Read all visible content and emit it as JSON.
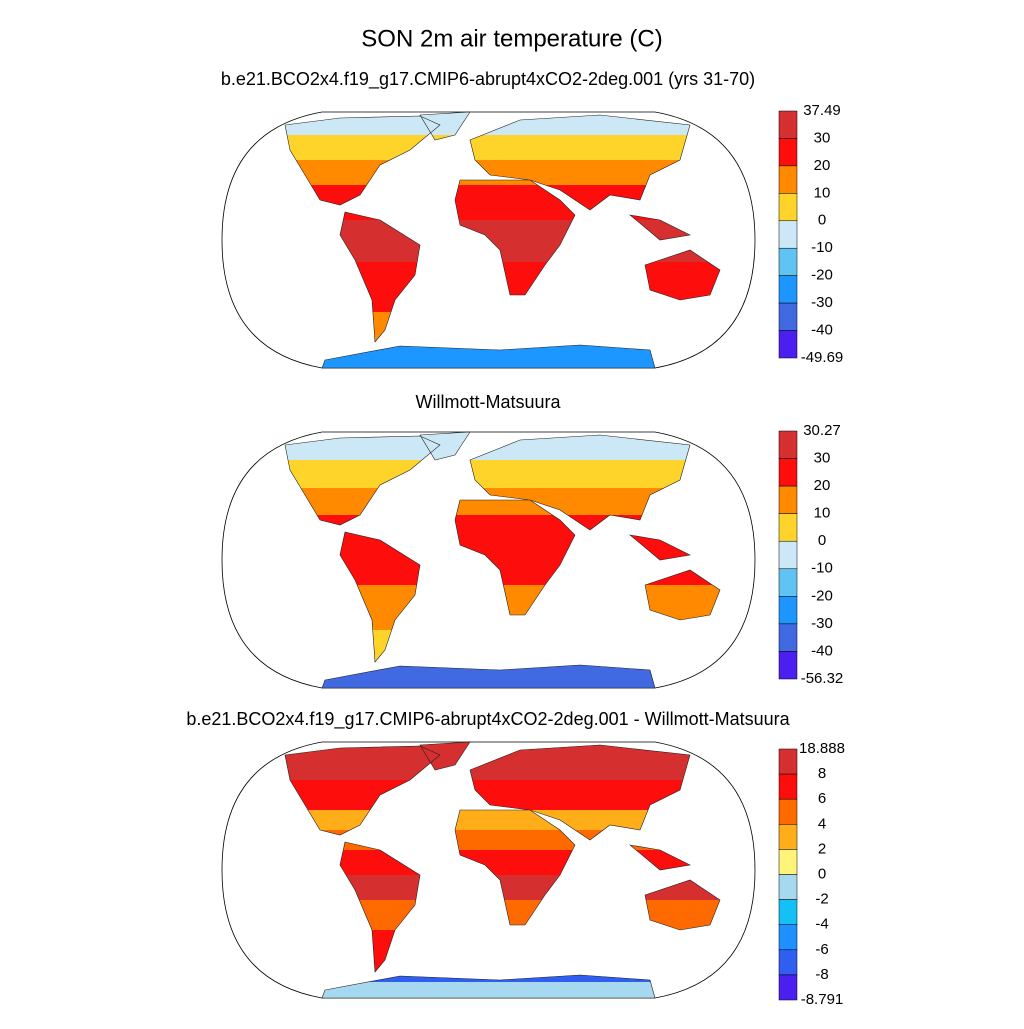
{
  "title": "SON 2m air temperature (C)",
  "panels": [
    {
      "title": "b.e21.BCO2x4.f19_g17.CMIP6-abrupt4xCO2-2deg.001 (yrs 31-70)",
      "colorbar": {
        "labels": [
          37.49,
          30,
          20,
          10,
          0,
          -10,
          -20,
          -30,
          -40,
          -49.69
        ],
        "colors": [
          "#d62f2f",
          "#fe0d0d",
          "#ff8a00",
          "#ffd42a",
          "#cce8f6",
          "#5fc4f2",
          "#1e96ff",
          "#4169e1",
          "#4a1ff0"
        ]
      }
    },
    {
      "title": "Willmott-Matsuura",
      "colorbar": {
        "labels": [
          30.27,
          30,
          20,
          10,
          0,
          -10,
          -20,
          -30,
          -40,
          -56.32
        ],
        "colors": [
          "#d62f2f",
          "#fe0d0d",
          "#ff8a00",
          "#ffd42a",
          "#cce8f6",
          "#5fc4f2",
          "#1e96ff",
          "#4169e1",
          "#4a1ff0"
        ]
      }
    },
    {
      "title": "b.e21.BCO2x4.f19_g17.CMIP6-abrupt4xCO2-2deg.001 - Willmott-Matsuura",
      "colorbar": {
        "labels": [
          18.888,
          8,
          6,
          4,
          2,
          0,
          -2,
          -4,
          -6,
          -8,
          -8.791
        ],
        "colors": [
          "#d62f2f",
          "#fe0d0d",
          "#ff6a00",
          "#ffae1a",
          "#fff37a",
          "#a6d8f0",
          "#14c0f5",
          "#1e90ff",
          "#2f5ef0",
          "#4a1ff0"
        ]
      }
    }
  ]
}
